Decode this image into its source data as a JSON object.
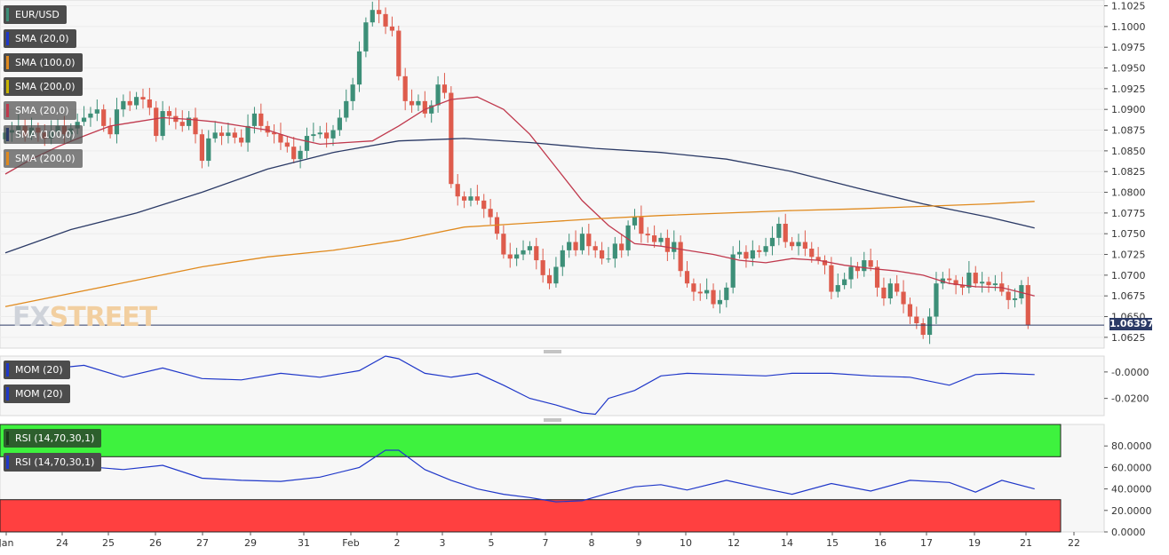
{
  "symbol": "EUR/USD",
  "indicators": {
    "main": [
      "SMA (20,0)",
      "SMA (100,0)",
      "SMA (200,0)",
      "SMA (20,0)",
      "SMA (100,0)",
      "SMA (200,0)"
    ],
    "mom": [
      "MOM (20)",
      "MOM (20)"
    ],
    "rsi": [
      "RSI (14,70,30,1)",
      "RSI (14,70,30,1)"
    ]
  },
  "last_price": "1.06397",
  "logo": {
    "fx": "FX",
    "street": "STREET"
  },
  "colors": {
    "up": "#3d8f78",
    "down": "#de5b4c",
    "sma20": "#c0394d",
    "sma100": "#2b3a66",
    "sma200": "#e08a1e",
    "mom": "#1f37c9",
    "rsi_over": "#3ef23e",
    "rsi_under": "#ff4040"
  },
  "chart_data": [
    {
      "type": "candlestick",
      "title": "EUR/USD",
      "timeframe_labels": [
        "Jan",
        "24",
        "25",
        "26",
        "27",
        "29",
        "31",
        "Feb",
        "2",
        "3",
        "5",
        "7",
        "8",
        "9",
        "10",
        "12",
        "14",
        "15",
        "16",
        "17",
        "19",
        "21",
        "22"
      ],
      "y_ticks": [
        "1.0625",
        "1.0650",
        "1.0675",
        "1.0700",
        "1.0725",
        "1.0750",
        "1.0775",
        "1.0800",
        "1.0825",
        "1.0850",
        "1.0875",
        "1.0900",
        "1.0925",
        "1.0950",
        "1.0975",
        "1.1000",
        "1.1025"
      ],
      "ylim": [
        1.0612,
        1.1032
      ],
      "closes": [
        1.0872,
        1.0875,
        1.088,
        1.0868,
        1.0878,
        1.0872,
        1.0865,
        1.0873,
        1.088,
        1.087,
        1.0877,
        1.0885,
        1.089,
        1.0895,
        1.09,
        1.088,
        1.087,
        1.09,
        1.091,
        1.0905,
        1.0915,
        1.0912,
        1.0902,
        1.0868,
        1.0898,
        1.0892,
        1.0885,
        1.088,
        1.089,
        1.087,
        1.0838,
        1.0865,
        1.0872,
        1.0868,
        1.0872,
        1.0866,
        1.086,
        1.088,
        1.0895,
        1.088,
        1.0872,
        1.087,
        1.086,
        1.0855,
        1.084,
        1.085,
        1.0868,
        1.087,
        1.0872,
        1.0865,
        1.0875,
        1.089,
        1.091,
        1.093,
        1.097,
        1.1005,
        1.102,
        1.1015,
        1.1,
        1.0995,
        1.094,
        1.091,
        1.0905,
        1.091,
        1.0895,
        1.0905,
        1.093,
        1.092,
        1.081,
        1.0795,
        1.079,
        1.0795,
        1.079,
        1.078,
        1.077,
        1.075,
        1.0725,
        1.072,
        1.0725,
        1.073,
        1.0735,
        1.0718,
        1.07,
        1.069,
        1.071,
        1.073,
        1.074,
        1.073,
        1.075,
        1.0735,
        1.073,
        1.072,
        1.072,
        1.0738,
        1.073,
        1.076,
        1.077,
        1.075,
        1.0748,
        1.074,
        1.0745,
        1.0728,
        1.074,
        1.0705,
        1.069,
        1.068,
        1.0678,
        1.0682,
        1.0665,
        1.067,
        1.0685,
        1.0725,
        1.0728,
        1.072,
        1.073,
        1.0728,
        1.0735,
        1.0745,
        1.0762,
        1.074,
        1.0735,
        1.074,
        1.0732,
        1.0722,
        1.0718,
        1.0712,
        1.068,
        1.0688,
        1.0695,
        1.071,
        1.0705,
        1.0718,
        1.071,
        1.0685,
        1.0672,
        1.069,
        1.068,
        1.0665,
        1.065,
        1.0642,
        1.0628,
        1.065,
        1.069,
        1.0696,
        1.0694,
        1.0688,
        1.0685,
        1.0703,
        1.069,
        1.0692,
        1.0688,
        1.069,
        1.068,
        1.067,
        1.0672,
        1.0688,
        1.064
      ],
      "series": [
        {
          "name": "SMA (20,0)",
          "x": [
            0,
            4,
            8,
            12,
            16,
            20,
            24,
            28,
            32,
            36,
            40,
            44,
            48,
            52,
            56,
            60,
            64,
            68,
            72,
            76,
            80,
            84,
            88,
            92,
            96,
            100,
            104,
            108,
            112,
            116,
            120,
            124,
            128,
            132,
            136,
            140,
            144,
            148,
            152,
            157
          ],
          "y": [
            1.0822,
            1.084,
            1.0855,
            1.0868,
            1.088,
            1.0885,
            1.089,
            1.0888,
            1.0885,
            1.088,
            1.0875,
            1.0865,
            1.0858,
            1.086,
            1.0862,
            1.088,
            1.09,
            1.0912,
            1.0915,
            1.09,
            1.087,
            1.083,
            1.079,
            1.076,
            1.0738,
            1.0735,
            1.073,
            1.0725,
            1.0718,
            1.0715,
            1.072,
            1.0718,
            1.0712,
            1.0708,
            1.0705,
            1.07,
            1.069,
            1.0686,
            1.0685,
            1.0675
          ]
        },
        {
          "name": "SMA (100,0)",
          "x": [
            0,
            10,
            20,
            30,
            40,
            50,
            60,
            70,
            80,
            90,
            100,
            110,
            120,
            130,
            140,
            150,
            157
          ],
          "y": [
            1.0727,
            1.0755,
            1.0775,
            1.08,
            1.0828,
            1.0848,
            1.0862,
            1.0865,
            1.086,
            1.0853,
            1.0848,
            1.084,
            1.0825,
            1.0805,
            1.0786,
            1.077,
            1.0757
          ]
        },
        {
          "name": "SMA (200,0)",
          "x": [
            0,
            10,
            20,
            30,
            40,
            50,
            60,
            70,
            80,
            90,
            100,
            110,
            120,
            130,
            140,
            150,
            157
          ],
          "y": [
            1.0662,
            1.0678,
            1.0694,
            1.071,
            1.0722,
            1.073,
            1.0742,
            1.0758,
            1.0763,
            1.0768,
            1.0772,
            1.0775,
            1.0778,
            1.078,
            1.0783,
            1.0786,
            1.0789
          ]
        }
      ]
    },
    {
      "type": "line",
      "title": "MOM (20)",
      "y_ticks": [
        "-0.0000",
        "-0.0200"
      ],
      "ylim": [
        -0.033,
        0.012
      ],
      "series": [
        {
          "name": "MOM (20)",
          "x": [
            0,
            6,
            12,
            18,
            24,
            30,
            36,
            42,
            48,
            54,
            58,
            60,
            64,
            68,
            72,
            76,
            80,
            84,
            88,
            90,
            92,
            96,
            100,
            104,
            110,
            116,
            120,
            126,
            132,
            138,
            144,
            148,
            152,
            157
          ],
          "y": [
            0.003,
            0.002,
            0.005,
            -0.004,
            0.003,
            -0.005,
            -0.006,
            -0.001,
            -0.004,
            0.001,
            0.012,
            0.01,
            -0.001,
            -0.004,
            -0.001,
            -0.01,
            -0.02,
            -0.025,
            -0.031,
            -0.032,
            -0.02,
            -0.014,
            -0.003,
            -0.001,
            -0.002,
            -0.003,
            -0.001,
            -0.001,
            -0.003,
            -0.004,
            -0.01,
            -0.002,
            -0.001,
            -0.002
          ]
        }
      ]
    },
    {
      "type": "line",
      "title": "RSI (14,70,30,1)",
      "y_ticks": [
        "0.0000",
        "20.0000",
        "40.0000",
        "60.0000",
        "80.0000"
      ],
      "ylim": [
        0,
        100
      ],
      "bands": {
        "overbought": 70,
        "oversold": 30
      },
      "series": [
        {
          "name": "RSI (14,70,30,1)",
          "x": [
            0,
            6,
            12,
            18,
            24,
            30,
            36,
            42,
            48,
            54,
            58,
            60,
            64,
            68,
            72,
            76,
            80,
            84,
            88,
            92,
            96,
            100,
            104,
            110,
            116,
            120,
            126,
            132,
            138,
            144,
            148,
            152,
            157
          ],
          "y": [
            62,
            63,
            61,
            58,
            62,
            50,
            48,
            47,
            51,
            60,
            76,
            76,
            58,
            48,
            40,
            35,
            32,
            28,
            29,
            36,
            42,
            44,
            39,
            48,
            40,
            35,
            45,
            38,
            48,
            46,
            37,
            48,
            40
          ]
        }
      ]
    }
  ]
}
